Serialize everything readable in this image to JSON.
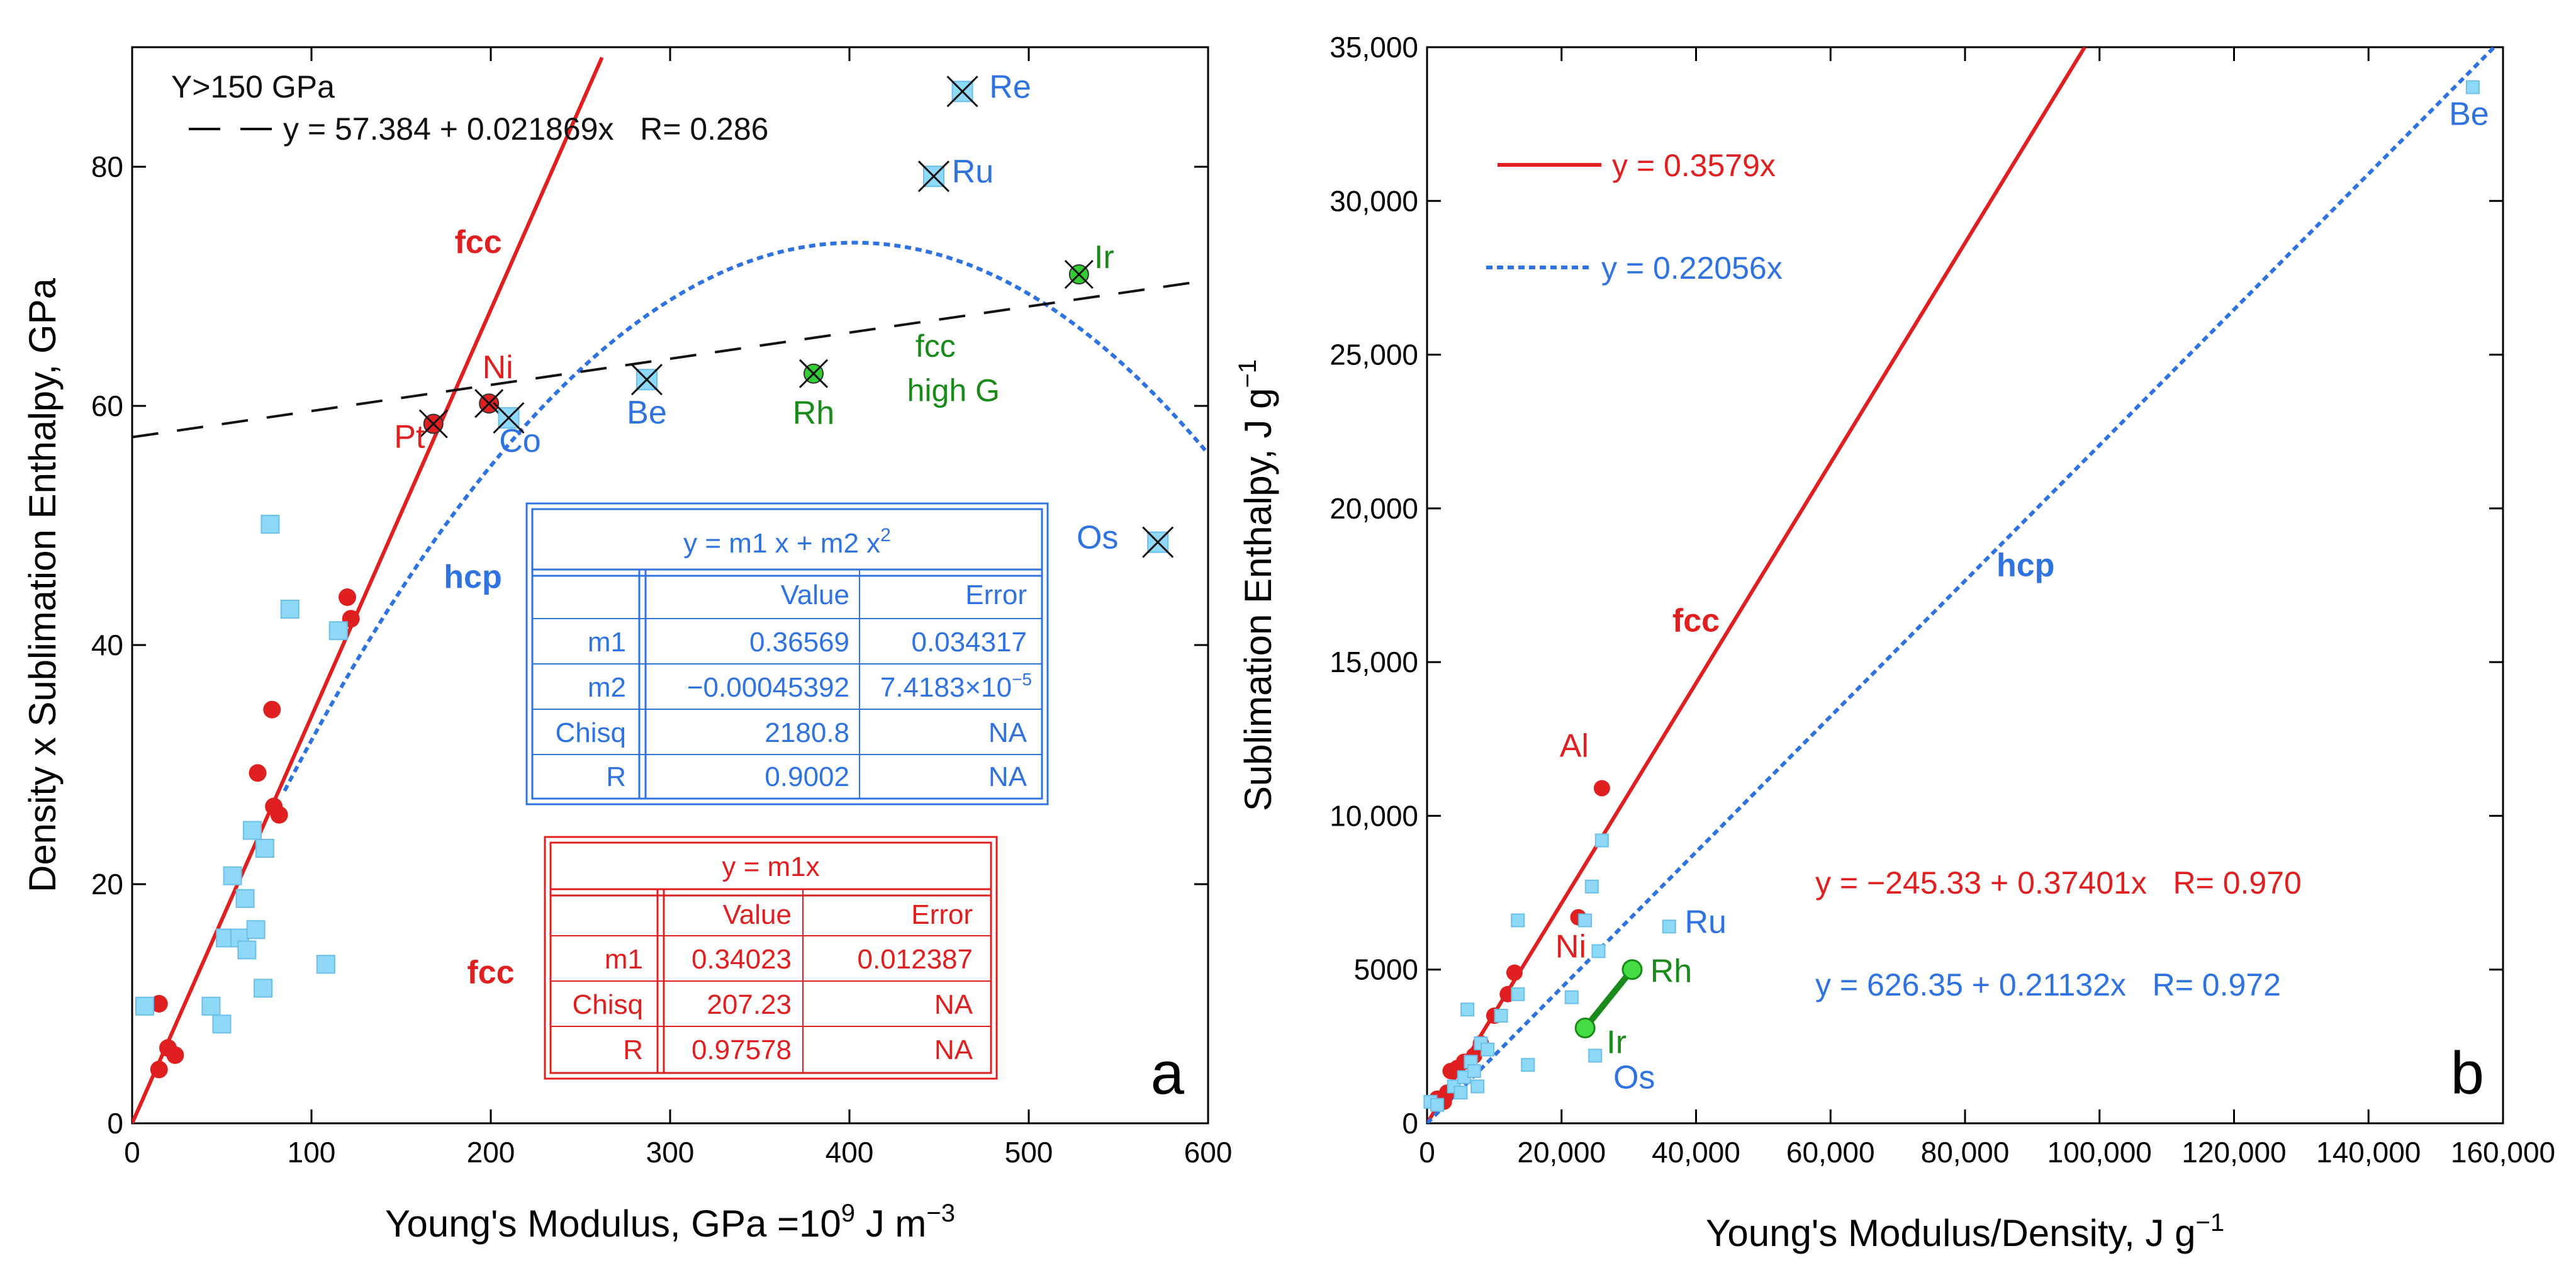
{
  "chart_data": [
    {
      "type": "scatter",
      "panel_label": "a",
      "xlabel": "Young's Modulus, GPa =10",
      "xlabel_sup": "9",
      "xlabel_tail": " J m",
      "xlabel_sup2": "−3",
      "ylabel": "Density x Sublimation Enthalpy, GPa",
      "xlim": [
        0,
        600
      ],
      "ylim": [
        0,
        90
      ],
      "xticks": [
        0,
        100,
        200,
        300,
        400,
        500,
        600
      ],
      "yticks": [
        0,
        20,
        40,
        60,
        80
      ],
      "fit_legend": {
        "line1": "Y>150 GPa",
        "line2": "y = 57.384 + 0.021869x   R= 0.286"
      },
      "fits": [
        {
          "name": "fcc",
          "kind": "linear",
          "intercept": 0,
          "slope": 0.34023,
          "x_range": [
            0,
            262
          ],
          "color": "#e02020",
          "style": "solid"
        },
        {
          "name": "hcp",
          "kind": "quadratic",
          "m1": 0.36569,
          "m2": -0.00045392,
          "x_range": [
            85,
            600
          ],
          "color": "#2f73e0",
          "style": "dotted"
        },
        {
          "name": "Y>150 GPa",
          "kind": "linear",
          "intercept": 57.384,
          "slope": 0.021869,
          "x_range": [
            0,
            600
          ],
          "color": "#111111",
          "style": "dashed"
        }
      ],
      "series": [
        {
          "name": "fcc",
          "marker": "circle",
          "color": "#e02020",
          "points": [
            [
              15,
              4.5
            ],
            [
              15,
              10
            ],
            [
              20,
              6.3
            ],
            [
              24,
              5.7
            ],
            [
              70,
              29.3
            ],
            [
              78,
              34.6
            ],
            [
              79,
              26.5
            ],
            [
              82,
              25.8
            ],
            [
              120,
              44
            ],
            [
              122,
              42.2
            ]
          ]
        },
        {
          "name": "hcp",
          "marker": "square",
          "color": "#8ed8f8",
          "points": [
            [
              7,
              9.8
            ],
            [
              44,
              9.8
            ],
            [
              50,
              8.3
            ],
            [
              52,
              15.5
            ],
            [
              56,
              20.7
            ],
            [
              60,
              15.5
            ],
            [
              63,
              18.8
            ],
            [
              64,
              14.5
            ],
            [
              67,
              24.5
            ],
            [
              69,
              16.2
            ],
            [
              74,
              23
            ],
            [
              73,
              11.3
            ],
            [
              77,
              50.1
            ],
            [
              88,
              43
            ],
            [
              108,
              13.3
            ],
            [
              115,
              41.2
            ]
          ]
        }
      ],
      "labeled_points": [
        {
          "label": "Pt",
          "x": 168,
          "y": 58.5,
          "marker": "circle-x",
          "fill": "#e02020",
          "color": "#e02020",
          "dx": -38,
          "dy": 38
        },
        {
          "label": "Ni",
          "x": 199,
          "y": 60.2,
          "marker": "circle-x",
          "fill": "#e02020",
          "color": "#e02020",
          "dx": 14,
          "dy": -40
        },
        {
          "label": "Co",
          "x": 210,
          "y": 59,
          "marker": "square-x",
          "fill": "#8ed8f8",
          "color": "#2f73e0",
          "dx": 18,
          "dy": 54
        },
        {
          "label": "Be",
          "x": 287,
          "y": 62.2,
          "marker": "square-x",
          "fill": "#8ed8f8",
          "color": "#2f73e0",
          "dx": 0,
          "dy": 70
        },
        {
          "label": "Rh",
          "x": 380,
          "y": 62.7,
          "marker": "circle-x",
          "fill": "#33cc33",
          "color": "#1a8a1a",
          "dx": 0,
          "dy": 80
        },
        {
          "label": "Ir",
          "x": 528,
          "y": 71,
          "marker": "circle-x",
          "fill": "#33cc33",
          "color": "#1a8a1a",
          "dx": 40,
          "dy": -10
        },
        {
          "label": "Ru",
          "x": 447,
          "y": 79.2,
          "marker": "square-x",
          "fill": "#8ed8f8",
          "color": "#2f73e0",
          "dx": 62,
          "dy": 10
        },
        {
          "label": "Re",
          "x": 463,
          "y": 86.3,
          "marker": "square-x",
          "fill": "#8ed8f8",
          "color": "#2f73e0",
          "dx": 76,
          "dy": 10
        },
        {
          "label": "Os",
          "x": 572,
          "y": 48.6,
          "marker": "square-x",
          "fill": "#8ed8f8",
          "color": "#2f73e0",
          "dx": -96,
          "dy": 10
        }
      ],
      "annotations": [
        {
          "text": "fcc",
          "x": 193,
          "y": 72.8,
          "color": "#e02020",
          "bold": true
        },
        {
          "text": "hcp",
          "x": 190,
          "y": 44.8,
          "color": "#2f73e0",
          "bold": true
        },
        {
          "text": "fcc",
          "x": 200,
          "y": 11.7,
          "color": "#e02020",
          "bold": true
        },
        {
          "text": "fcc",
          "x": 448,
          "y": 64.1,
          "color": "#1a8a1a",
          "bold": false
        },
        {
          "text": "high G",
          "x": 458,
          "y": 60.4,
          "color": "#1a8a1a",
          "bold": false
        }
      ],
      "tables": [
        {
          "name": "hcp-fit-table",
          "color": "#2f73e0",
          "title": "y = m1 x + m2 x",
          "title_sup": "2",
          "headers": [
            "",
            "Value",
            "Error"
          ],
          "rows": [
            [
              "m1",
              "0.36569",
              "0.034317"
            ],
            [
              "m2",
              "−0.00045392",
              "7.4183×10"
            ],
            [
              "Chisq",
              "2180.8",
              "NA"
            ],
            [
              "R",
              "0.9002",
              "NA"
            ]
          ],
          "row_sup": [
            null,
            "−5",
            null,
            null
          ]
        },
        {
          "name": "fcc-fit-table",
          "color": "#e02020",
          "title": "y = m1x",
          "title_sup": "",
          "headers": [
            "",
            "Value",
            "Error"
          ],
          "rows": [
            [
              "m1",
              "0.34023",
              "0.012387"
            ],
            [
              "Chisq",
              "207.23",
              "NA"
            ],
            [
              "R",
              "0.97578",
              "NA"
            ]
          ],
          "row_sup": [
            null,
            null,
            null
          ]
        }
      ]
    },
    {
      "type": "scatter",
      "panel_label": "b",
      "xlabel": "Young's Modulus/Density, J g",
      "xlabel_sup": "−1",
      "ylabel": "Sublimation Enthalpy, J g",
      "ylabel_sup": "−1",
      "xlim": [
        0,
        160000
      ],
      "ylim": [
        0,
        35000
      ],
      "xticks": [
        0,
        20000,
        40000,
        60000,
        80000,
        100000,
        120000,
        140000,
        160000
      ],
      "xtick_labels": [
        "0",
        "20,000",
        "40,000",
        "60,000",
        "80,000",
        "100,000",
        "120,000",
        "140,000",
        "160,000"
      ],
      "yticks": [
        0,
        5000,
        10000,
        15000,
        20000,
        25000,
        30000,
        35000
      ],
      "ytick_labels": [
        "0",
        "5000",
        "10,000",
        "15,000",
        "20,000",
        "25,000",
        "30,000",
        "35,000"
      ],
      "legend": [
        {
          "label": "y = 0.3579x",
          "color": "#e02020",
          "style": "solid"
        },
        {
          "label": "y = 0.22056x",
          "color": "#2f73e0",
          "style": "dotted"
        }
      ],
      "fits": [
        {
          "name": "fcc",
          "kind": "linear",
          "intercept": 0,
          "slope": 0.3579,
          "x_range": [
            0,
            97800
          ],
          "color": "#e02020",
          "style": "solid"
        },
        {
          "name": "hcp",
          "kind": "linear",
          "intercept": 0,
          "slope": 0.22056,
          "x_range": [
            0,
            158700
          ],
          "color": "#2f73e0",
          "style": "dotted"
        }
      ],
      "regressions": [
        {
          "text": "y = −245.33 + 0.37401x   R= 0.970",
          "color": "#e02020"
        },
        {
          "text": "y = 626.35 + 0.21132x   R= 0.972",
          "color": "#2f73e0"
        }
      ],
      "series": [
        {
          "name": "fcc",
          "marker": "circle",
          "color": "#e02020",
          "points": [
            [
              1500,
              800
            ],
            [
              2500,
              700
            ],
            [
              3000,
              1000
            ],
            [
              3500,
              1700
            ],
            [
              4500,
              1800
            ],
            [
              5500,
              2000
            ],
            [
              7000,
              2200
            ],
            [
              8000,
              2600
            ],
            [
              10000,
              3500
            ],
            [
              12000,
              4200
            ],
            [
              13000,
              4900
            ],
            [
              22500,
              6700
            ],
            [
              26000,
              10900
            ]
          ]
        },
        {
          "name": "hcp",
          "marker": "square",
          "color": "#8ed8f8",
          "points": [
            [
              500,
              700
            ],
            [
              1500,
              600
            ],
            [
              4000,
              1200
            ],
            [
              5000,
              1000
            ],
            [
              5500,
              1500
            ],
            [
              6000,
              3700
            ],
            [
              6500,
              2000
            ],
            [
              7000,
              1700
            ],
            [
              7500,
              1200
            ],
            [
              8000,
              2600
            ],
            [
              9000,
              2400
            ],
            [
              11000,
              3500
            ],
            [
              13500,
              4200
            ],
            [
              13500,
              6600
            ],
            [
              15000,
              1900
            ],
            [
              21500,
              4100
            ],
            [
              23500,
              6600
            ],
            [
              24500,
              7700
            ],
            [
              25000,
              2200
            ],
            [
              25500,
              5600
            ],
            [
              26000,
              9200
            ],
            [
              36000,
              6400
            ],
            [
              155500,
              33700
            ]
          ]
        }
      ],
      "pgm_segment": {
        "from": [
          23500,
          3100
        ],
        "to": [
          30500,
          5000
        ],
        "color": "#1a8a1a",
        "fill": "#44dd44"
      },
      "labeled_points": [
        {
          "label": "Al",
          "x": 26000,
          "y": 10900,
          "color": "#e02020",
          "dx": -44,
          "dy": -50
        },
        {
          "label": "Ni",
          "x": 22500,
          "y": 6700,
          "color": "#e02020",
          "dx": -12,
          "dy": 64
        },
        {
          "label": "Ru",
          "x": 36000,
          "y": 6400,
          "color": "#2f73e0",
          "dx": 58,
          "dy": 10
        },
        {
          "label": "Rh",
          "x": 30500,
          "y": 5000,
          "color": "#1a8a1a",
          "dx": 62,
          "dy": 20
        },
        {
          "label": "Ir",
          "x": 23500,
          "y": 3100,
          "color": "#1a8a1a",
          "dx": 50,
          "dy": 40
        },
        {
          "label": "Os",
          "x": 25000,
          "y": 2200,
          "color": "#2f73e0",
          "dx": 62,
          "dy": 52
        },
        {
          "label": "Be",
          "x": 155500,
          "y": 33700,
          "color": "#2f73e0",
          "dx": -6,
          "dy": 60
        }
      ],
      "annotations": [
        {
          "text": "fcc",
          "x": 40000,
          "y": 16000,
          "color": "#e02020",
          "bold": true
        },
        {
          "text": "hcp",
          "x": 89000,
          "y": 17800,
          "color": "#2f73e0",
          "bold": true
        }
      ]
    }
  ]
}
